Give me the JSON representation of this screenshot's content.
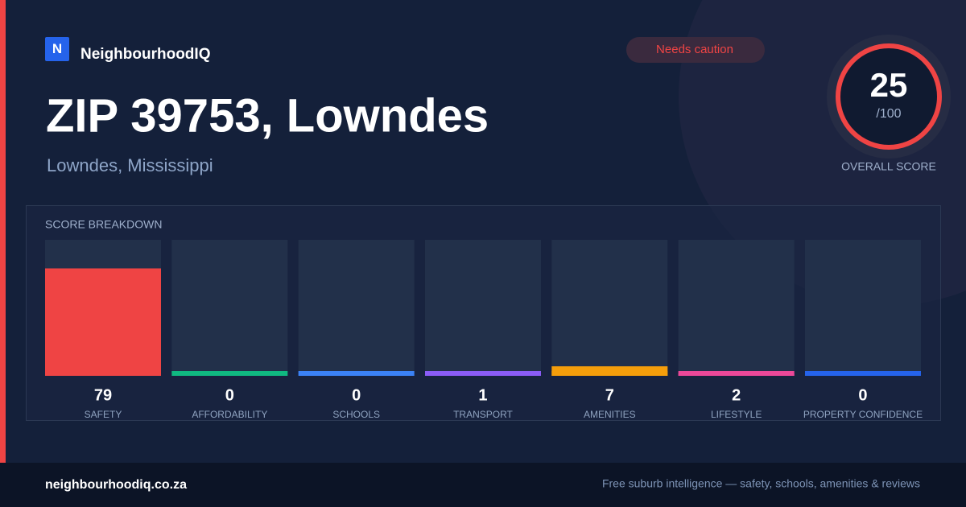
{
  "brand": {
    "logo": "N",
    "name": "NeighbourhoodIQ"
  },
  "badge": "Needs caution",
  "header": {
    "title": "ZIP 39753, Lowndes",
    "subtitle": "Lowndes, Mississippi"
  },
  "overall_score": {
    "value": 25,
    "label": "/100",
    "caption": "OVERALL SCORE"
  },
  "chart_data": {
    "type": "bar",
    "title": "SCORE BREAKDOWN",
    "categories": [
      "SAFETY",
      "AFFORDABILITY",
      "SCHOOLS",
      "TRANSPORT",
      "AMENITIES",
      "LIFESTYLE",
      "PROPERTY CONFIDENCE"
    ],
    "values": [
      79,
      0,
      0,
      1,
      7,
      2,
      0
    ],
    "colors": [
      "#ef4444",
      "#10b981",
      "#3b82f6",
      "#8b5cf6",
      "#f59e0b",
      "#ec4899",
      "#2563eb"
    ],
    "ylim": [
      0,
      100
    ]
  },
  "footer": {
    "site": "neighbourhoodiq.co.za",
    "tagline": "Free suburb intelligence — safety, schools, amenities & reviews"
  }
}
